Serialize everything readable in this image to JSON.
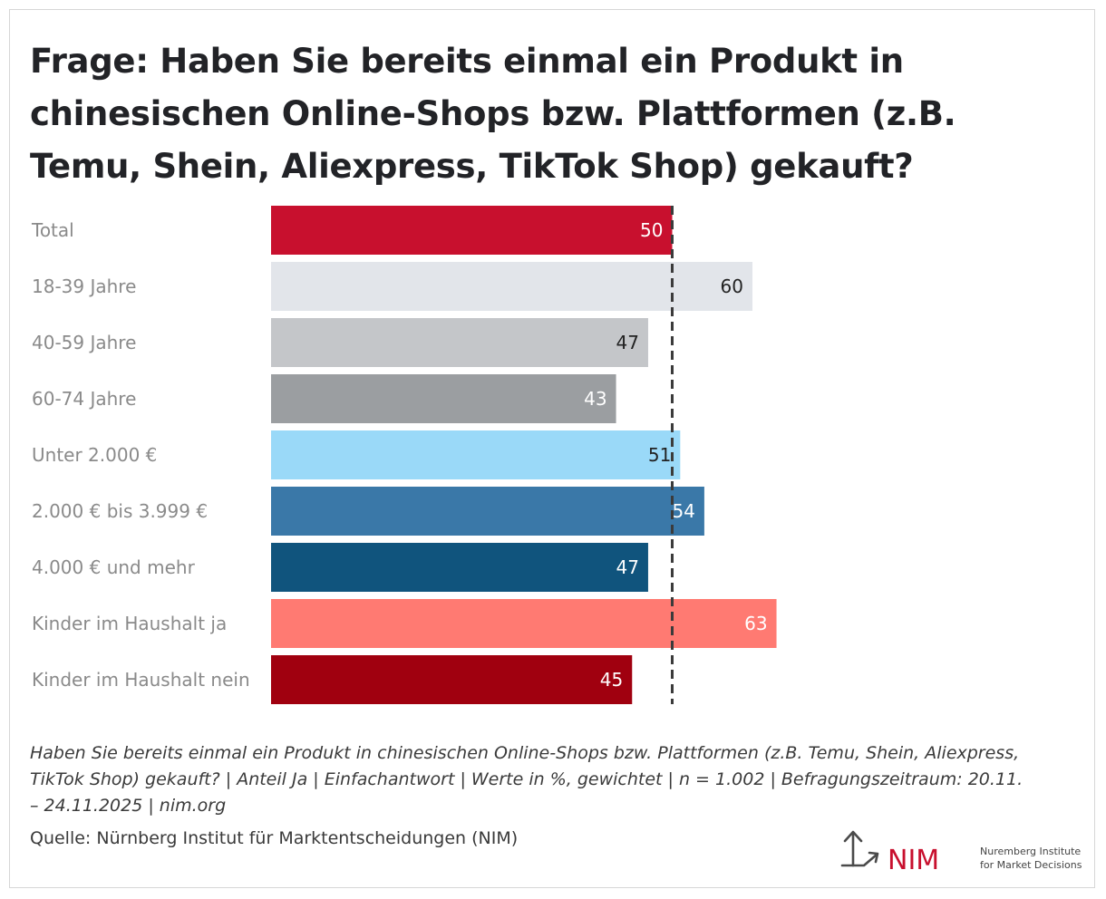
{
  "title": "Frage: Haben Sie bereits einmal ein Produkt in chinesischen Online-Shops bzw. Plattformen (z.B. Temu, Shein, Aliexpress, TikTok Shop) gekauft?",
  "note": "Haben Sie bereits einmal ein Produkt in chinesischen Online-Shops bzw. Plattformen (z.B. Temu, Shein, Aliexpress, TikTok Shop) gekauft? | Anteil Ja | Einfachantwort | Werte in %, gewichtet | n = 1.002 | Befragungszeitraum: 20.11. – 24.11.2025 | nim.org",
  "source": "Quelle: Nürnberg Institut für Marktentscheidungen (NIM)",
  "logo": {
    "mark": "NIM",
    "line1": "Nuremberg Institute",
    "line2": "for Market Decisions",
    "icon": "arrow-branch-icon",
    "color": "#c8102e"
  },
  "chart_data": {
    "type": "bar",
    "orientation": "horizontal",
    "categories": [
      "Total",
      "18-39 Jahre",
      "40-59 Jahre",
      "60-74 Jahre",
      "Unter 2.000 €",
      "2.000 € bis 3.999 €",
      "4.000 € und mehr",
      "Kinder im Haushalt ja",
      "Kinder im Haushalt nein"
    ],
    "values": [
      50,
      60,
      47,
      43,
      51,
      54,
      47,
      63,
      45
    ],
    "colors": [
      "#c8102e",
      "#e2e5ea",
      "#c4c6c9",
      "#9b9ea1",
      "#9ad9f8",
      "#3a78a8",
      "#10547d",
      "#ff7a72",
      "#a0000f"
    ],
    "label_colors": [
      "#ffffff",
      "#222222",
      "#222222",
      "#ffffff",
      "#222222",
      "#ffffff",
      "#ffffff",
      "#ffffff",
      "#ffffff"
    ],
    "reference_line": {
      "value": 50,
      "style": "dashed"
    },
    "xlim": [
      0,
      100
    ],
    "grid": false,
    "legend": "none"
  }
}
